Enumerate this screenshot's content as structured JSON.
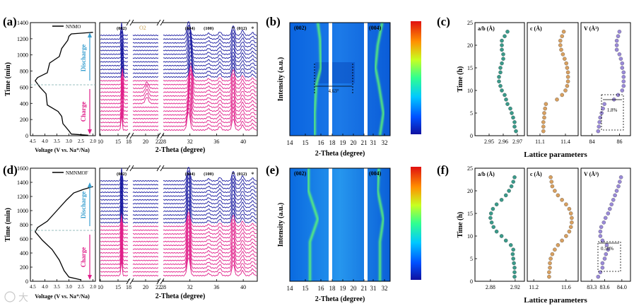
{
  "figure": {
    "panel_labels": [
      "(a)",
      "(b)",
      "(c)",
      "(d)",
      "(e)",
      "(f)"
    ],
    "watermark": "大",
    "top": {
      "legend": "NNMO",
      "charge_label": "Charge",
      "discharge_label": "Discharge",
      "o2_label": "O2",
      "peaks": [
        {
          "label": "(002)",
          "x": 16.0
        },
        {
          "label": "(004)",
          "x": 32.0
        },
        {
          "label": "(100)",
          "x": 34.8
        },
        {
          "label": "(012)",
          "x": 39.8
        }
      ],
      "shift_label": "4.63°",
      "percent_label": "1.8%"
    },
    "bottom": {
      "legend": "NMNMOF",
      "charge_label": "Charge",
      "discharge_label": "Discharge",
      "peaks": [
        {
          "label": "(002)",
          "x": 16.0
        },
        {
          "label": "(004)",
          "x": 32.0
        },
        {
          "label": "(100)",
          "x": 34.8
        },
        {
          "label": "(012)",
          "x": 39.8
        }
      ],
      "percent_label": "0.50%"
    },
    "axes": {
      "time_min": "Time (min)",
      "voltage": "Voltage (V vs. Na⁺/Na)",
      "two_theta": "2-Theta (degree)",
      "intensity": "Intensity (a.u.)",
      "time_h": "Time (h)",
      "lattice": "Lattice parameters",
      "ab_title": "a/b (Å)",
      "c_title": "c (Å)",
      "v_title": "V (Å³)"
    }
  },
  "chart_data": [
    {
      "type": "line",
      "panel": "(a) voltage profile",
      "series": "NNMO",
      "ylabel": "Time (min)",
      "xlabel": "Voltage (V vs. Na+/Na)",
      "ylim": [
        0,
        1400
      ],
      "xlim": [
        1.9,
        4.6
      ],
      "x_ticks": [
        "4.5",
        "4.0",
        "3.5",
        "3.0",
        "2.5",
        "2.0"
      ],
      "y_ticks": [
        0,
        200,
        400,
        600,
        800,
        1000,
        1200,
        1400
      ],
      "profile": [
        [
          2.2,
          5
        ],
        [
          2.9,
          20
        ],
        [
          3.0,
          60
        ],
        [
          3.25,
          150
        ],
        [
          3.3,
          240
        ],
        [
          3.45,
          300
        ],
        [
          3.9,
          380
        ],
        [
          3.95,
          520
        ],
        [
          4.2,
          600
        ],
        [
          4.4,
          680
        ],
        [
          4.3,
          720
        ],
        [
          3.9,
          780
        ],
        [
          3.8,
          900
        ],
        [
          3.4,
          980
        ],
        [
          3.3,
          1080
        ],
        [
          3.05,
          1180
        ],
        [
          3.0,
          1230
        ],
        [
          2.9,
          1260
        ],
        [
          2.0,
          1280
        ]
      ]
    },
    {
      "type": "line",
      "panel": "(d) voltage profile",
      "series": "NMNMOF",
      "ylabel": "Time (min)",
      "xlabel": "Voltage (V vs. Na+/Na)",
      "ylim": [
        0,
        1600
      ],
      "xlim": [
        1.9,
        4.6
      ],
      "x_ticks": [
        "4.5",
        "4.0",
        "3.5",
        "3.0",
        "2.5",
        "2.0"
      ],
      "y_ticks": [
        0,
        200,
        400,
        600,
        800,
        1000,
        1200,
        1400,
        1600
      ],
      "profile": [
        [
          2.5,
          20
        ],
        [
          3.0,
          60
        ],
        [
          3.2,
          150
        ],
        [
          3.4,
          300
        ],
        [
          3.7,
          450
        ],
        [
          4.1,
          580
        ],
        [
          4.4,
          700
        ],
        [
          4.3,
          760
        ],
        [
          3.9,
          850
        ],
        [
          3.5,
          1000
        ],
        [
          3.1,
          1150
        ],
        [
          2.8,
          1250
        ],
        [
          2.4,
          1300
        ],
        [
          2.0,
          1340
        ]
      ]
    },
    {
      "type": "line",
      "panel": "(a) in-situ XRD stacks",
      "series": "NNMO",
      "xlabel": "2-Theta (degree)",
      "x_ticks": [
        10,
        15,
        18,
        20,
        22,
        28,
        32,
        36,
        40
      ],
      "charge_scans": 14,
      "discharge_scans": 12,
      "peak_positions": [
        16.0,
        32.0,
        34.8,
        36.5,
        38.5,
        39.8,
        41.5
      ]
    },
    {
      "type": "line",
      "panel": "(d) in-situ XRD stacks",
      "series": "NMNMOF",
      "xlabel": "2-Theta (degree)",
      "x_ticks": [
        10,
        15,
        18,
        20,
        22,
        28,
        32,
        36,
        40
      ],
      "charge_scans": 14,
      "discharge_scans": 12,
      "peak_positions": [
        16.0,
        32.0,
        34.8,
        36.5,
        38.5,
        39.8,
        41.5
      ]
    },
    {
      "type": "heatmap",
      "panel": "(b) contour",
      "series": "NNMO",
      "xlabel": "2-Theta (degree)",
      "ylabel": "Intensity (a.u.)",
      "x_ticks": [
        14,
        15,
        16,
        18,
        19,
        20,
        21,
        31,
        32
      ],
      "peak_002_trace": [
        [
          0,
          15.6
        ],
        [
          0.2,
          15.6
        ],
        [
          0.45,
          15.7
        ],
        [
          0.6,
          16.0
        ],
        [
          0.85,
          15.95
        ],
        [
          1,
          15.8
        ]
      ],
      "peak_004_trace": [
        [
          0,
          31.6
        ],
        [
          0.2,
          31.9
        ],
        [
          0.45,
          31.5
        ],
        [
          0.6,
          31.2
        ],
        [
          0.8,
          31.4
        ],
        [
          1,
          31.8
        ]
      ]
    },
    {
      "type": "heatmap",
      "panel": "(e) contour",
      "series": "NMNMOF",
      "xlabel": "2-Theta (degree)",
      "ylabel": "Intensity (a.u.)",
      "x_ticks": [
        14,
        15,
        16,
        18,
        19,
        20,
        21,
        31,
        32
      ],
      "peak_002_trace": [
        [
          0,
          15.3
        ],
        [
          0.35,
          15.3
        ],
        [
          0.55,
          15.8
        ],
        [
          0.8,
          15.2
        ],
        [
          1,
          15.2
        ]
      ],
      "peak_004_trace": [
        [
          0,
          31.6
        ],
        [
          0.35,
          31.6
        ],
        [
          0.55,
          31.9
        ],
        [
          0.8,
          31.4
        ],
        [
          1,
          31.5
        ]
      ]
    },
    {
      "type": "scatter",
      "panel": "(c) lattice parameters",
      "series": "NNMO",
      "ylabel": "Time (h)",
      "xlabel": "Lattice parameters",
      "ylim": [
        0,
        25
      ],
      "time_h": [
        1,
        2,
        3,
        4,
        5,
        6,
        7,
        8,
        9,
        10,
        11,
        12,
        13,
        14,
        15,
        16,
        17,
        18,
        19,
        20,
        21,
        22,
        23
      ],
      "ab": {
        "xlim": [
          2.94,
          2.975
        ],
        "ticks": [
          "2.95",
          "2.96",
          "2.97"
        ],
        "values": [
          2.969,
          2.968,
          2.968,
          2.967,
          2.966,
          2.965,
          2.963,
          2.962,
          2.961,
          2.959,
          2.958,
          2.957,
          2.957,
          2.958,
          2.958,
          2.959,
          2.96,
          2.96,
          2.959,
          2.959,
          2.959,
          2.961,
          2.963
        ]
      },
      "c": {
        "xlim": [
          10.95,
          11.55
        ],
        "ticks": [
          "11.1",
          "11.4"
        ],
        "values": [
          11.14,
          11.14,
          11.14,
          11.15,
          11.15,
          11.16,
          11.17,
          11.3,
          11.36,
          11.4,
          11.42,
          11.43,
          11.43,
          11.43,
          11.42,
          11.41,
          11.39,
          11.37,
          11.35,
          11.34,
          11.34,
          11.36,
          11.38
        ]
      },
      "v": {
        "xlim": [
          83.2,
          86.8
        ],
        "ticks": [
          "84",
          "86"
        ],
        "values": [
          84.45,
          84.5,
          84.55,
          84.6,
          84.7,
          84.8,
          84.9,
          85.6,
          85.9,
          86.2,
          86.3,
          86.3,
          86.3,
          86.3,
          86.2,
          86.2,
          86.1,
          86.0,
          85.8,
          85.8,
          85.8,
          85.9,
          86.0
        ]
      }
    },
    {
      "type": "scatter",
      "panel": "(f) lattice parameters",
      "series": "NMNMOF",
      "ylabel": "Time (h)",
      "xlabel": "Lattice parameters",
      "ylim": [
        0,
        25
      ],
      "time_h": [
        1,
        2,
        3,
        4,
        5,
        6,
        7,
        8,
        9,
        10,
        11,
        12,
        13,
        14,
        15,
        16,
        17,
        18,
        19,
        20,
        21,
        22,
        23
      ],
      "ab": {
        "xlim": [
          2.855,
          2.935
        ],
        "ticks": [
          "2.88",
          "2.92"
        ],
        "values": [
          2.919,
          2.919,
          2.919,
          2.918,
          2.917,
          2.916,
          2.917,
          2.913,
          2.905,
          2.898,
          2.89,
          2.885,
          2.882,
          2.88,
          2.881,
          2.884,
          2.89,
          2.898,
          2.905,
          2.91,
          2.914,
          2.917,
          2.919
        ]
      },
      "c": {
        "xlim": [
          11.12,
          11.75
        ],
        "ticks": [
          "11.2",
          "11.6"
        ],
        "values": [
          11.39,
          11.39,
          11.4,
          11.4,
          11.41,
          11.43,
          11.46,
          11.5,
          11.55,
          11.6,
          11.64,
          11.66,
          11.67,
          11.67,
          11.66,
          11.64,
          11.6,
          11.55,
          11.5,
          11.46,
          11.43,
          11.42,
          11.41
        ]
      },
      "v": {
        "xlim": [
          83.05,
          84.2
        ],
        "ticks": [
          "83.3",
          "83.6",
          "84.0"
        ],
        "values": [
          83.45,
          83.5,
          83.55,
          83.55,
          83.6,
          83.63,
          83.68,
          83.65,
          83.55,
          83.5,
          83.5,
          83.52,
          83.58,
          83.62,
          83.68,
          83.72,
          83.76,
          83.8,
          83.84,
          83.88,
          83.92,
          83.95,
          83.98
        ]
      }
    }
  ]
}
